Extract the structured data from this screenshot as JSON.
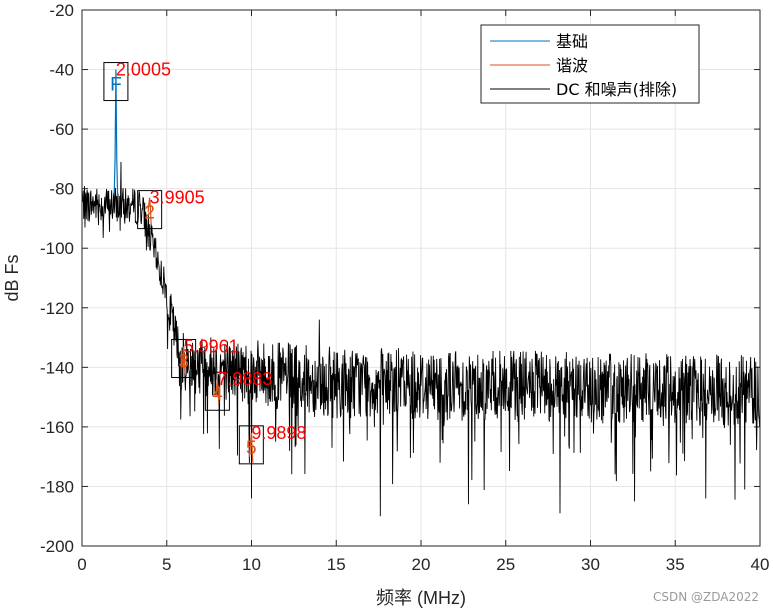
{
  "chart_data": {
    "type": "line",
    "title": "",
    "xlabel": "频率 (MHz)",
    "ylabel": "dB Fs",
    "xlim": [
      0,
      40
    ],
    "ylim": [
      -200,
      -20
    ],
    "xticks": [
      "0",
      "5",
      "10",
      "15",
      "20",
      "25",
      "30",
      "35",
      "40"
    ],
    "yticks": [
      "-200",
      "-180",
      "-160",
      "-140",
      "-120",
      "-100",
      "-80",
      "-60",
      "-40",
      "-20"
    ],
    "grid": true,
    "legend_position": "top-right",
    "colors": {
      "fundamental": "#0072BD",
      "harmonics": "#D95319",
      "noise": "#000000",
      "marker_labels": "#FF0000",
      "grid": "#E5E5E5",
      "axis": "#262626"
    },
    "series": [
      {
        "name": "基础",
        "role": "fundamental",
        "x": [
          1.9,
          1.95,
          2.0005,
          2.05,
          2.1
        ],
        "y": [
          -82,
          -70,
          -40,
          -70,
          -82
        ]
      },
      {
        "name": "谐波",
        "role": "harmonics",
        "x": [
          3.9,
          3.95,
          3.9905,
          4.03,
          4.08,
          5.9,
          5.95,
          5.9961,
          6.04,
          6.08,
          7.9,
          7.95,
          7.9883,
          8.03,
          8.07,
          9.88,
          9.94,
          9.9898,
          10.04,
          10.08
        ],
        "y": [
          -88,
          -85,
          -83,
          -86,
          -92,
          -140,
          -136,
          -133,
          -138,
          -142,
          -150,
          -146,
          -144,
          -149,
          -152,
          -170,
          -165,
          -162,
          -168,
          -172
        ],
        "segments": [
          [
            0,
            5
          ],
          [
            5,
            10
          ],
          [
            10,
            15
          ],
          [
            15,
            20
          ]
        ]
      },
      {
        "name": "DC 和噪声(排除)",
        "role": "noise",
        "x_range": [
          0,
          40
        ],
        "points": 1600,
        "seed": 7,
        "envelope": [
          {
            "x": 0,
            "mean": -85,
            "amplitude": 6
          },
          {
            "x": 3.5,
            "mean": -86,
            "amplitude": 6
          },
          {
            "x": 5.0,
            "mean": -115,
            "amplitude": 6
          },
          {
            "x": 5.8,
            "mean": -138,
            "amplitude": 10
          },
          {
            "x": 14,
            "mean": -145,
            "amplitude": 12
          },
          {
            "x": 40,
            "mean": -148,
            "amplitude": 12
          }
        ],
        "spikes": [
          {
            "x": 2.3,
            "y": -71
          },
          {
            "x": 7.0,
            "y": -133
          },
          {
            "x": 14.0,
            "y": -124
          },
          {
            "x": 16.6,
            "y": -136
          },
          {
            "x": 10.0,
            "y": -184
          },
          {
            "x": 17.6,
            "y": -190
          },
          {
            "x": 22.8,
            "y": -186
          },
          {
            "x": 28.2,
            "y": -189
          },
          {
            "x": 32.6,
            "y": -185
          },
          {
            "x": 36.8,
            "y": -184
          }
        ]
      }
    ],
    "markers": [
      {
        "symbol": "F",
        "x": 2.0005,
        "y": -40,
        "label": "2.0005",
        "color": "#0072BD"
      },
      {
        "symbol": "2",
        "x": 3.9905,
        "y": -83,
        "label": "3.9905",
        "color": "#D95319"
      },
      {
        "symbol": "3",
        "x": 5.9961,
        "y": -133,
        "label": "5.9961",
        "color": "#D95319"
      },
      {
        "symbol": "4",
        "x": 7.9883,
        "y": -144,
        "label": "7.9883",
        "color": "#D95319"
      },
      {
        "symbol": "5",
        "x": 9.9898,
        "y": -162,
        "label": "9.9898",
        "color": "#D95319"
      }
    ]
  },
  "watermark": "CSDN @ZDA2022"
}
